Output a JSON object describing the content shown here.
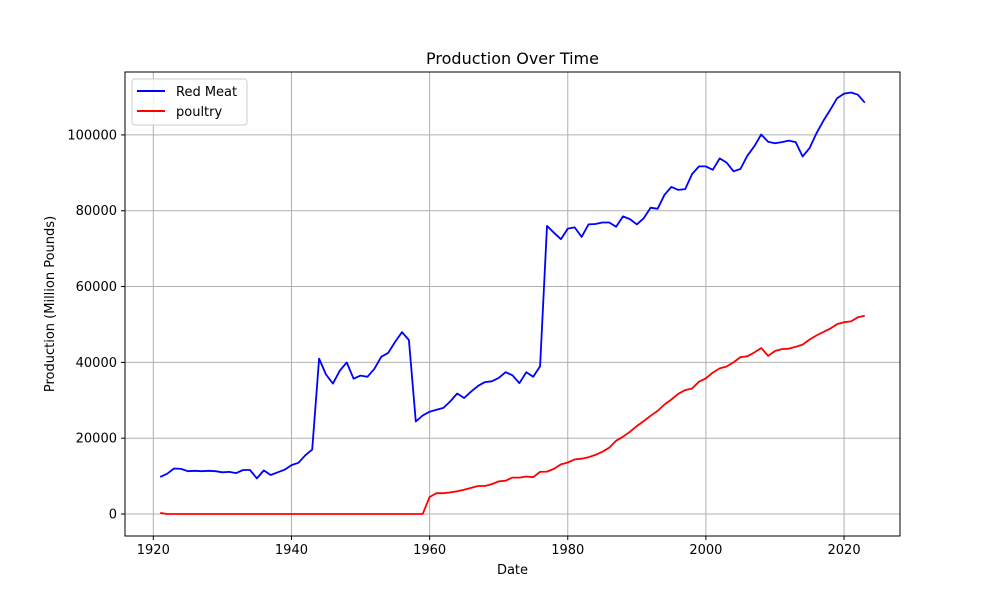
{
  "chart_data": {
    "type": "line",
    "title": "Production Over Time",
    "xlabel": "Date",
    "ylabel": "Production (Million Pounds)",
    "xlim": [
      1915.9,
      2028.1
    ],
    "ylim": [
      -5800,
      116600
    ],
    "xticks": [
      1920,
      1940,
      1960,
      1980,
      2000,
      2020
    ],
    "yticks": [
      0,
      20000,
      40000,
      60000,
      80000,
      100000
    ],
    "grid": true,
    "legend_position": "upper-left",
    "x": [
      1921,
      1922,
      1923,
      1924,
      1925,
      1926,
      1927,
      1928,
      1929,
      1930,
      1931,
      1932,
      1933,
      1934,
      1935,
      1936,
      1937,
      1938,
      1939,
      1940,
      1941,
      1942,
      1943,
      1944,
      1945,
      1946,
      1947,
      1948,
      1949,
      1950,
      1951,
      1952,
      1953,
      1954,
      1955,
      1956,
      1957,
      1958,
      1959,
      1960,
      1961,
      1962,
      1963,
      1964,
      1965,
      1966,
      1967,
      1968,
      1969,
      1970,
      1971,
      1972,
      1973,
      1974,
      1975,
      1976,
      1977,
      1978,
      1979,
      1980,
      1981,
      1982,
      1983,
      1984,
      1985,
      1986,
      1987,
      1988,
      1989,
      1990,
      1991,
      1992,
      1993,
      1994,
      1995,
      1996,
      1997,
      1998,
      1999,
      2000,
      2001,
      2002,
      2003,
      2004,
      2005,
      2006,
      2007,
      2008,
      2009,
      2010,
      2011,
      2012,
      2013,
      2014,
      2015,
      2016,
      2017,
      2018,
      2019,
      2020,
      2021,
      2022,
      2023
    ],
    "series": [
      {
        "name": "Red Meat",
        "color": "#0000ff",
        "values": [
          9800,
          10600,
          12000,
          11900,
          11300,
          11400,
          11300,
          11400,
          11300,
          11000,
          11100,
          10800,
          11600,
          11600,
          9400,
          11500,
          10300,
          11000,
          11700,
          12900,
          13500,
          15500,
          17000,
          41000,
          36800,
          34400,
          37800,
          40000,
          35700,
          36500,
          36200,
          38300,
          41500,
          42500,
          45400,
          48000,
          45900,
          24400,
          26000,
          27000,
          27500,
          28000,
          29700,
          31800,
          30600,
          32300,
          33800,
          34800,
          35000,
          35900,
          37400,
          36600,
          34500,
          37400,
          36200,
          39000,
          76000,
          74200,
          72500,
          75300,
          75600,
          73100,
          76400,
          76500,
          76900,
          76900,
          75800,
          78500,
          77800,
          76400,
          78000,
          80800,
          80500,
          84200,
          86300,
          85500,
          85700,
          89700,
          91700,
          91700,
          90800,
          93800,
          92700,
          90400,
          91000,
          94500,
          97000,
          100100,
          98200,
          97800,
          98100,
          98500,
          98100,
          94300,
          96500,
          100400,
          103700,
          106600,
          109700,
          110900,
          111200,
          110600,
          108500
        ]
      },
      {
        "name": "poultry",
        "color": "#ff0000",
        "values": [
          300,
          0,
          0,
          0,
          0,
          0,
          0,
          0,
          0,
          0,
          0,
          0,
          0,
          0,
          0,
          0,
          0,
          0,
          0,
          0,
          0,
          0,
          0,
          0,
          0,
          0,
          0,
          0,
          0,
          0,
          0,
          0,
          0,
          0,
          0,
          0,
          0,
          0,
          0,
          4500,
          5500,
          5500,
          5700,
          6000,
          6400,
          6900,
          7400,
          7400,
          7900,
          8600,
          8800,
          9600,
          9600,
          9900,
          9700,
          11100,
          11200,
          11900,
          13100,
          13600,
          14400,
          14600,
          15000,
          15600,
          16400,
          17500,
          19300,
          20400,
          21700,
          23200,
          24500,
          25900,
          27200,
          28900,
          30200,
          31700,
          32700,
          33100,
          34900,
          35800,
          37300,
          38400,
          38900,
          40000,
          41400,
          41600,
          42600,
          43800,
          41700,
          43000,
          43500,
          43600,
          44100,
          44700,
          46000,
          47100,
          48000,
          48900,
          50100,
          50600,
          50800,
          51900,
          52300
        ]
      }
    ]
  }
}
